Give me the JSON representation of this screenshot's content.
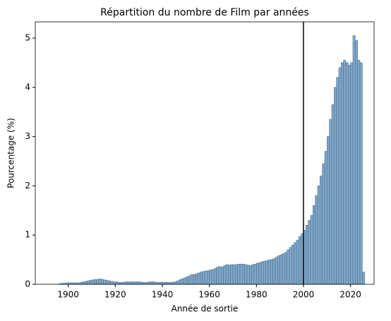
{
  "chart_data": {
    "type": "histogram",
    "title": "Répartition du nombre de Film par années",
    "x_label": "Année de sortie",
    "y_label": "Pourcentage (%)",
    "bins": [
      1896,
      1897,
      1898,
      1899,
      1900,
      1901,
      1902,
      1903,
      1904,
      1905,
      1906,
      1907,
      1908,
      1909,
      1910,
      1911,
      1912,
      1913,
      1914,
      1915,
      1916,
      1917,
      1918,
      1919,
      1920,
      1921,
      1922,
      1923,
      1924,
      1925,
      1926,
      1927,
      1928,
      1929,
      1930,
      1931,
      1932,
      1933,
      1934,
      1935,
      1936,
      1937,
      1938,
      1939,
      1940,
      1941,
      1942,
      1943,
      1944,
      1945,
      1946,
      1947,
      1948,
      1949,
      1950,
      1951,
      1952,
      1953,
      1954,
      1955,
      1956,
      1957,
      1958,
      1959,
      1960,
      1961,
      1962,
      1963,
      1964,
      1965,
      1966,
      1967,
      1968,
      1969,
      1970,
      1971,
      1972,
      1973,
      1974,
      1975,
      1976,
      1977,
      1978,
      1979,
      1980,
      1981,
      1982,
      1983,
      1984,
      1985,
      1986,
      1987,
      1988,
      1989,
      1990,
      1991,
      1992,
      1993,
      1994,
      1995,
      1996,
      1997,
      1998,
      1999,
      2000,
      2001,
      2002,
      2003,
      2004,
      2005,
      2006,
      2007,
      2008,
      2009,
      2010,
      2011,
      2012,
      2013,
      2014,
      2015,
      2016,
      2017,
      2018,
      2019,
      2020,
      2021,
      2022,
      2023,
      2024,
      2025,
      2026
    ],
    "values": [
      0.01,
      0.02,
      0.02,
      0.03,
      0.03,
      0.03,
      0.03,
      0.03,
      0.03,
      0.04,
      0.05,
      0.06,
      0.07,
      0.08,
      0.09,
      0.1,
      0.1,
      0.11,
      0.1,
      0.09,
      0.08,
      0.07,
      0.06,
      0.05,
      0.05,
      0.04,
      0.04,
      0.04,
      0.05,
      0.05,
      0.05,
      0.05,
      0.05,
      0.05,
      0.05,
      0.04,
      0.04,
      0.04,
      0.05,
      0.05,
      0.05,
      0.04,
      0.04,
      0.04,
      0.04,
      0.04,
      0.04,
      0.04,
      0.04,
      0.05,
      0.07,
      0.09,
      0.11,
      0.13,
      0.15,
      0.17,
      0.2,
      0.2,
      0.21,
      0.23,
      0.25,
      0.26,
      0.27,
      0.28,
      0.29,
      0.3,
      0.32,
      0.35,
      0.36,
      0.35,
      0.38,
      0.4,
      0.39,
      0.4,
      0.4,
      0.4,
      0.41,
      0.41,
      0.41,
      0.4,
      0.39,
      0.38,
      0.4,
      0.41,
      0.43,
      0.44,
      0.46,
      0.47,
      0.48,
      0.5,
      0.5,
      0.52,
      0.55,
      0.58,
      0.6,
      0.62,
      0.65,
      0.7,
      0.75,
      0.8,
      0.85,
      0.9,
      0.97,
      1.03,
      1.1,
      1.2,
      1.3,
      1.4,
      1.6,
      1.8,
      2.0,
      2.2,
      2.45,
      2.7,
      3.0,
      3.35,
      3.65,
      4.0,
      4.2,
      4.4,
      4.5,
      4.55,
      4.5,
      4.45,
      4.5,
      5.05,
      4.95,
      4.55,
      4.5,
      0.25
    ],
    "color": "#7fa7c7",
    "edge_color": "#4f6f8f",
    "vline": 2000,
    "xlim": [
      1886,
      2030
    ],
    "xticks": [
      1900,
      1920,
      1940,
      1960,
      1980,
      2000,
      2020
    ],
    "ylim": [
      0,
      5.33
    ],
    "yticks": [
      0,
      1,
      2,
      3,
      4,
      5
    ]
  }
}
